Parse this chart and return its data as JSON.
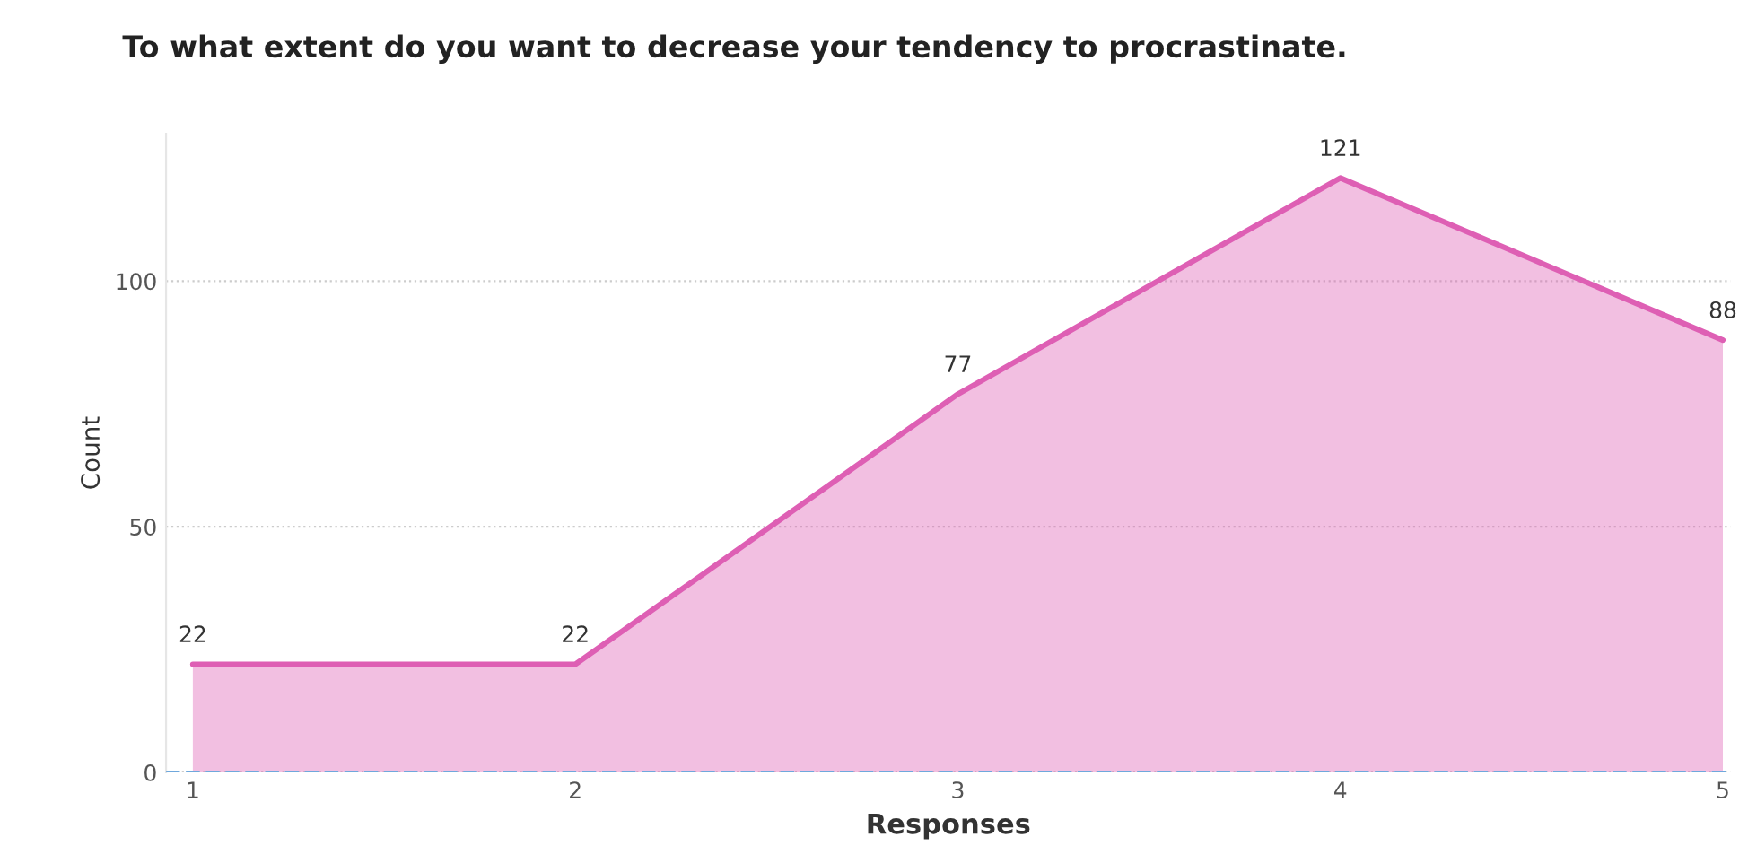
{
  "chart_data": {
    "type": "area",
    "title": "To what extent do you want to decrease your tendency to procrastinate.",
    "xlabel": "Responses",
    "ylabel": "Count",
    "x": [
      1,
      2,
      3,
      4,
      5
    ],
    "series": [
      {
        "color": "#de5fb4",
        "values": [
          22,
          22,
          77,
          121,
          88
        ]
      }
    ],
    "xlim": [
      0.93,
      5.02
    ],
    "xticks": [
      1,
      2,
      3,
      4,
      5
    ],
    "ylim": [
      0,
      130
    ],
    "yticks": [
      0,
      50,
      100
    ],
    "grid": "y",
    "data_labels": true,
    "legend": false,
    "ref_lines": [
      {
        "axis": "y",
        "value": 0,
        "color": "#6fa8dc",
        "line_style": "dashed"
      }
    ]
  }
}
